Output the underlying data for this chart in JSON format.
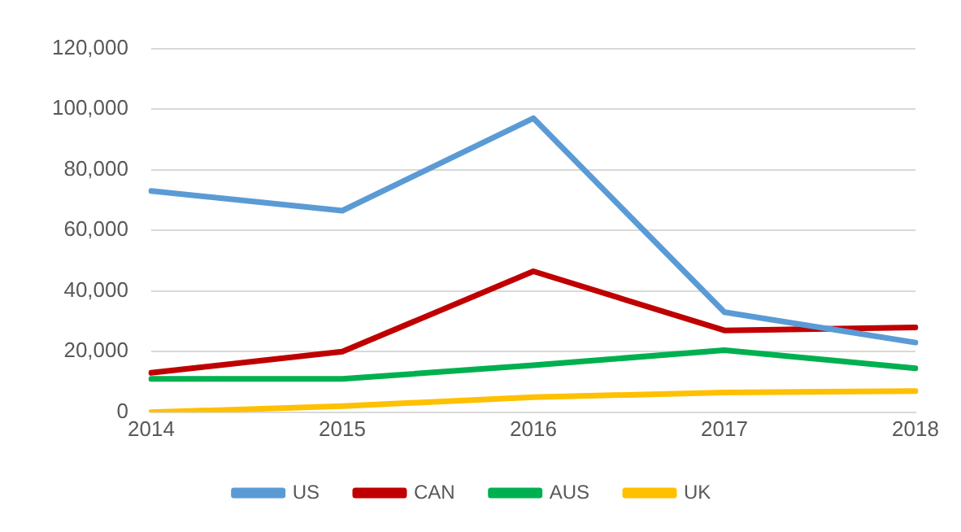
{
  "chart_data": {
    "type": "line",
    "categories": [
      "2014",
      "2015",
      "2016",
      "2017",
      "2018"
    ],
    "series": [
      {
        "name": "US",
        "color": "#5b9bd5",
        "values": [
          73000,
          66500,
          97000,
          33000,
          23000
        ]
      },
      {
        "name": "CAN",
        "color": "#c00000",
        "values": [
          13000,
          20000,
          46500,
          27000,
          28000
        ]
      },
      {
        "name": "AUS",
        "color": "#00b050",
        "values": [
          11000,
          11000,
          15500,
          20500,
          14500
        ]
      },
      {
        "name": "UK",
        "color": "#ffc000",
        "values": [
          0,
          2000,
          5000,
          6500,
          7000
        ]
      }
    ],
    "ylim": [
      0,
      120000
    ],
    "yticks": [
      {
        "value": 0,
        "label": "0"
      },
      {
        "value": 20000,
        "label": "20,000"
      },
      {
        "value": 40000,
        "label": "40,000"
      },
      {
        "value": 60000,
        "label": "60,000"
      },
      {
        "value": 80000,
        "label": "80,000"
      },
      {
        "value": 100000,
        "label": "100,000"
      },
      {
        "value": 120000,
        "label": "120,000"
      }
    ],
    "grid": "y",
    "legend": "bottom",
    "marker": "none",
    "line_style": "solid"
  }
}
